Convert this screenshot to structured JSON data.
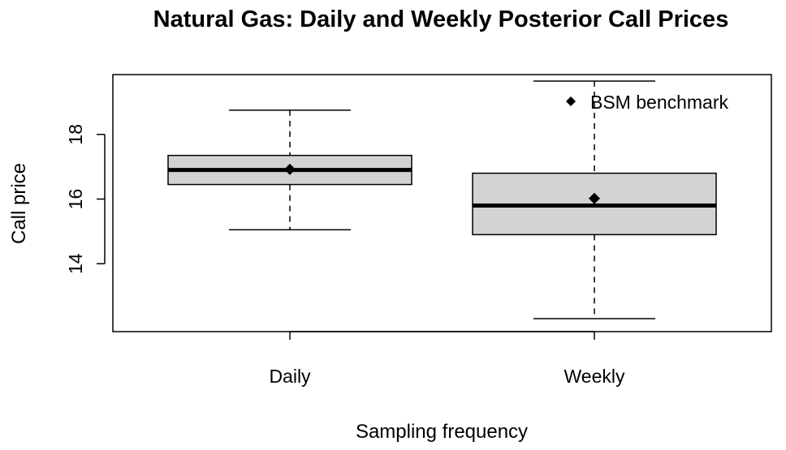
{
  "chart_data": {
    "type": "boxplot",
    "title": "Natural Gas: Daily and Weekly Posterior Call Prices",
    "xlabel": "Sampling frequency",
    "ylabel": "Call price",
    "categories": [
      "Daily",
      "Weekly"
    ],
    "boxes": [
      {
        "category": "Daily",
        "whisker_low": 15.05,
        "q1": 16.45,
        "median": 16.9,
        "q3": 17.35,
        "whisker_high": 18.75
      },
      {
        "category": "Weekly",
        "whisker_low": 12.3,
        "q1": 14.9,
        "median": 15.8,
        "q3": 16.8,
        "whisker_high": 19.65
      }
    ],
    "benchmark": {
      "name": "BSM benchmark",
      "values": [
        16.92,
        16.02
      ]
    },
    "ylim": [
      11.9,
      19.85
    ],
    "yticks": [
      14,
      16,
      18
    ],
    "legend_position": "top-right",
    "grid": false,
    "colors": {
      "box_fill": "#d3d3d3",
      "line": "#000000"
    }
  }
}
